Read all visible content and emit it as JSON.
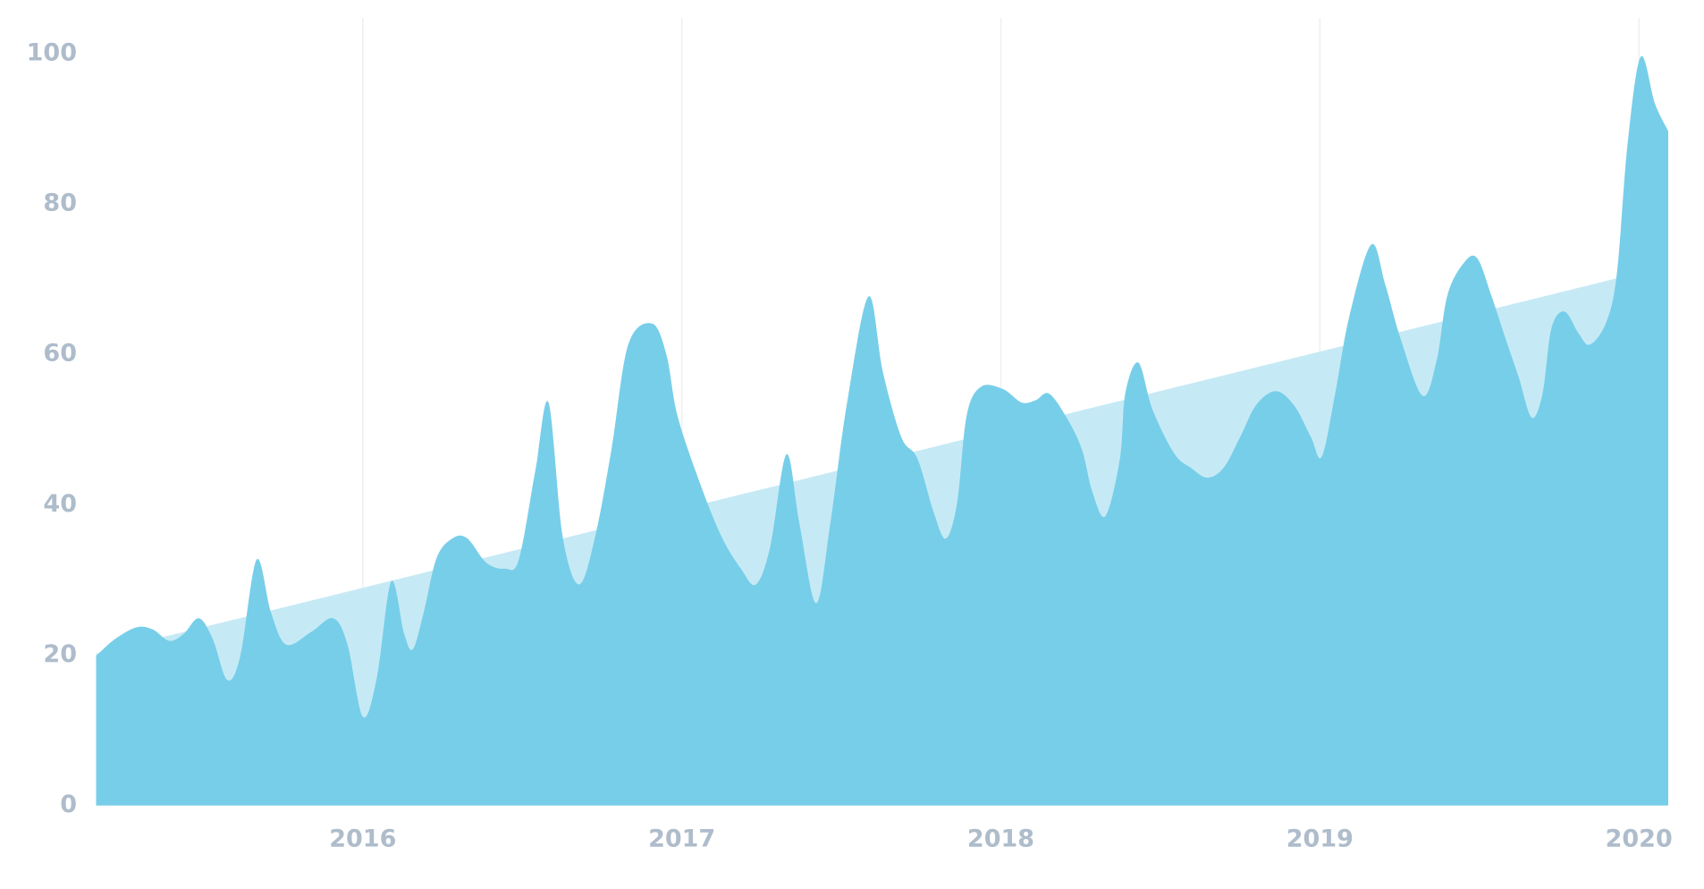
{
  "chart_data": {
    "type": "area",
    "xlim": [
      2015.164,
      2020.092
    ],
    "xticks": [
      2016,
      2017,
      2018,
      2019,
      2020
    ],
    "ylim": [
      0,
      100
    ],
    "yticks": [
      0,
      20,
      40,
      60,
      80,
      100
    ],
    "grid": true,
    "series": [
      {
        "color": "#c6eaf5",
        "x": [
          2015.164,
          2020.092
        ],
        "values": [
          20.2,
          71.8
        ]
      },
      {
        "color": "#77cee9",
        "x": [
          2015.164,
          2015.222,
          2015.291,
          2015.342,
          2015.393,
          2015.438,
          2015.486,
          2015.53,
          2015.575,
          2015.616,
          2015.667,
          2015.712,
          2015.76,
          2015.839,
          2015.907,
          2015.952,
          2016.0,
          2016.044,
          2016.089,
          2016.13,
          2016.157,
          2016.191,
          2016.232,
          2016.284,
          2016.328,
          2016.387,
          2016.445,
          2016.489,
          2016.541,
          2016.582,
          2016.626,
          2016.678,
          2016.729,
          2016.78,
          2016.832,
          2016.907,
          2016.952,
          2016.986,
          2017.054,
          2017.123,
          2017.185,
          2017.232,
          2017.277,
          2017.328,
          2017.369,
          2017.421,
          2017.465,
          2017.517,
          2017.585,
          2017.63,
          2017.688,
          2017.739,
          2017.791,
          2017.828,
          2017.863,
          2017.893,
          2017.938,
          2018.006,
          2018.065,
          2018.109,
          2018.15,
          2018.202,
          2018.253,
          2018.287,
          2018.328,
          2018.373,
          2018.39,
          2018.431,
          2018.476,
          2018.544,
          2018.596,
          2018.647,
          2018.698,
          2018.75,
          2018.801,
          2018.863,
          2018.921,
          2018.972,
          2019.006,
          2019.048,
          2019.092,
          2019.161,
          2019.205,
          2019.253,
          2019.322,
          2019.366,
          2019.4,
          2019.452,
          2019.493,
          2019.537,
          2019.582,
          2019.623,
          2019.664,
          2019.698,
          2019.726,
          2019.767,
          2019.811,
          2019.846,
          2019.897,
          2019.931,
          2019.965,
          2020.006,
          2020.051,
          2020.092
        ],
        "values": [
          19.9,
          22.1,
          23.7,
          23.4,
          21.9,
          22.8,
          24.9,
          22.1,
          16.7,
          19.9,
          32.7,
          25.7,
          21.4,
          23.1,
          24.9,
          21.4,
          11.8,
          17.0,
          29.8,
          22.8,
          20.8,
          25.7,
          33.0,
          35.6,
          35.5,
          32.3,
          31.5,
          32.7,
          44.6,
          53.6,
          35.9,
          29.4,
          35.9,
          47.5,
          61.3,
          64.1,
          59.9,
          51.9,
          43.2,
          35.9,
          31.5,
          29.4,
          34.4,
          46.7,
          37.4,
          26.9,
          37.4,
          53.3,
          67.7,
          57.7,
          49.0,
          46.1,
          38.8,
          35.5,
          40.3,
          51.9,
          55.7,
          55.4,
          53.6,
          53.9,
          54.8,
          51.9,
          47.5,
          41.7,
          38.5,
          46.1,
          54.8,
          58.9,
          52.6,
          46.8,
          44.9,
          43.6,
          44.9,
          49.0,
          53.3,
          55.1,
          53.1,
          49.0,
          46.4,
          54.8,
          65.0,
          74.6,
          69.3,
          62.1,
          54.5,
          59.2,
          67.9,
          72.2,
          72.8,
          67.9,
          62.1,
          57.0,
          51.6,
          54.8,
          63.5,
          65.7,
          62.8,
          61.3,
          64.2,
          70.8,
          88.2,
          99.6,
          93.3,
          89.7
        ]
      }
    ]
  }
}
